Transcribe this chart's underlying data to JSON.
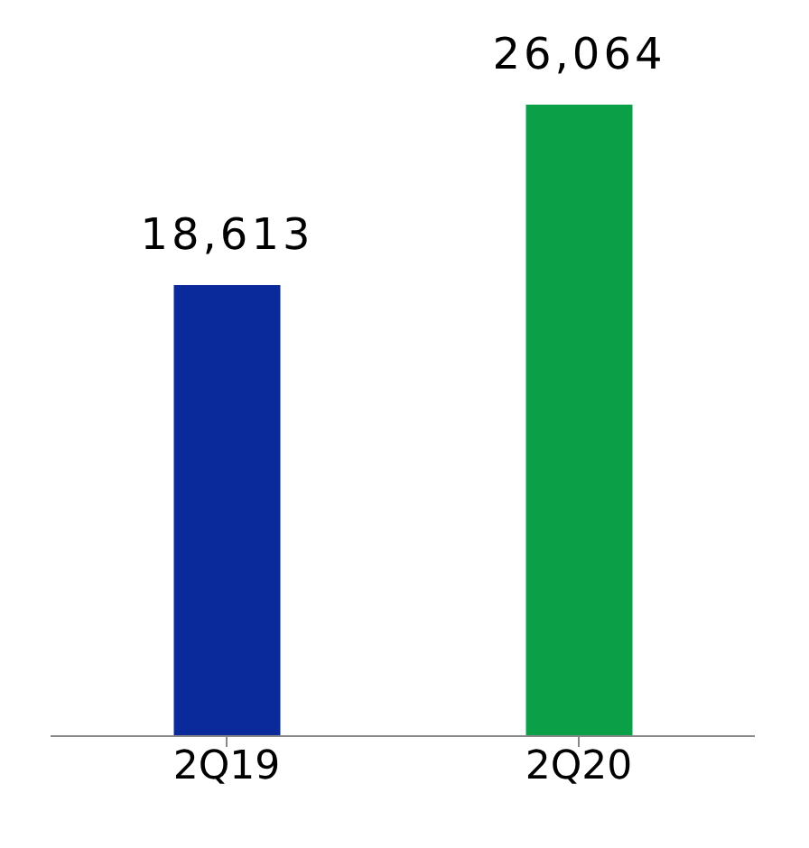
{
  "chart_data": {
    "type": "bar",
    "categories": [
      "2Q19",
      "2Q20"
    ],
    "values": [
      18613,
      26064
    ],
    "colors": [
      "#0a2a9c",
      "#0aa048"
    ],
    "value_labels": [
      "18,613",
      "26,064"
    ]
  }
}
